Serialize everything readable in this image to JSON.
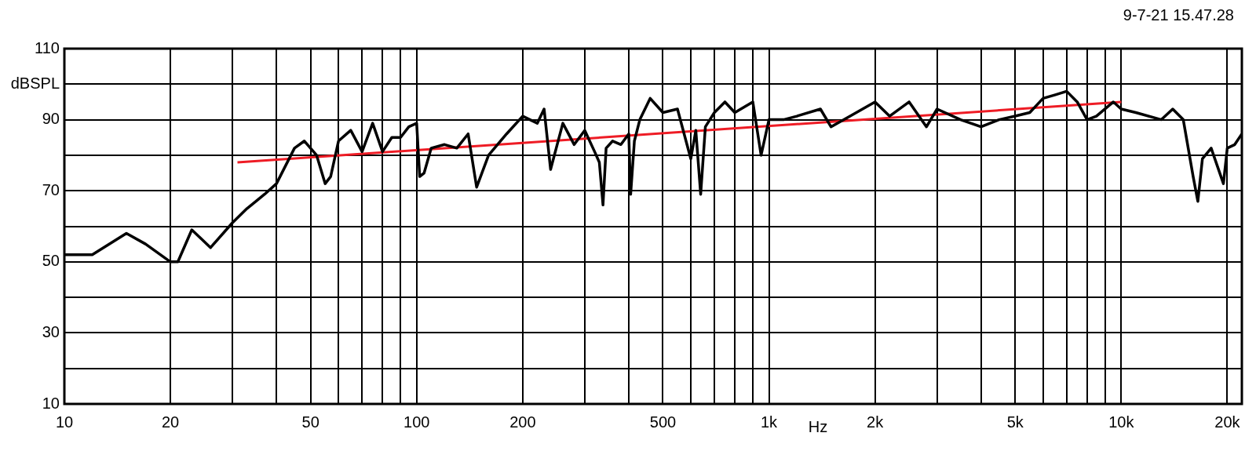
{
  "chart_data": {
    "type": "line",
    "ylabel": "dBSPL",
    "xlabel": "Hz",
    "annotations": [
      "9-7-21 15.47.28"
    ],
    "log": "x",
    "grid": true,
    "legend": false,
    "xlim": [
      10,
      22000
    ],
    "ylim": [
      10,
      110
    ],
    "xticks": [
      10,
      20,
      {
        "value": 30,
        "label": null
      },
      {
        "value": 40,
        "label": null
      },
      50,
      {
        "value": 60,
        "label": null
      },
      {
        "value": 70,
        "label": null
      },
      {
        "value": 80,
        "label": null
      },
      {
        "value": 90,
        "label": null
      },
      100,
      200,
      {
        "value": 300,
        "label": null
      },
      {
        "value": 400,
        "label": null
      },
      500,
      {
        "value": 600,
        "label": null
      },
      {
        "value": 700,
        "label": null
      },
      {
        "value": 800,
        "label": null
      },
      {
        "value": 900,
        "label": null
      },
      {
        "value": 1000,
        "label": "1k"
      },
      {
        "value": 2000,
        "label": "2k"
      },
      {
        "value": 3000,
        "label": null
      },
      {
        "value": 4000,
        "label": null
      },
      {
        "value": 5000,
        "label": "5k"
      },
      {
        "value": 6000,
        "label": null
      },
      {
        "value": 7000,
        "label": null
      },
      {
        "value": 8000,
        "label": null
      },
      {
        "value": 9000,
        "label": null
      },
      {
        "value": 10000,
        "label": "10k"
      },
      {
        "value": 20000,
        "label": "20k"
      }
    ],
    "yticks": [
      10,
      {
        "value": 20,
        "label": null
      },
      30,
      {
        "value": 40,
        "label": null
      },
      50,
      {
        "value": 60,
        "label": null
      },
      70,
      {
        "value": 80,
        "label": null
      },
      90,
      {
        "value": 100,
        "label": null
      },
      110
    ],
    "series": [
      {
        "color": "#000000",
        "x": [
          10,
          12,
          15,
          17,
          20,
          21,
          23,
          26,
          30,
          33,
          37,
          40,
          45,
          48,
          52,
          55,
          57,
          60,
          65,
          70,
          75,
          80,
          85,
          90,
          95,
          100,
          102,
          105,
          110,
          120,
          130,
          140,
          148,
          160,
          180,
          200,
          220,
          230,
          240,
          260,
          280,
          300,
          320,
          330,
          338,
          345,
          360,
          380,
          400,
          405,
          415,
          430,
          460,
          500,
          550,
          600,
          620,
          640,
          660,
          700,
          750,
          800,
          900,
          950,
          1000,
          1100,
          1200,
          1400,
          1500,
          1700,
          2000,
          2200,
          2500,
          2800,
          3000,
          3500,
          4000,
          4500,
          5000,
          5500,
          6000,
          6500,
          7000,
          7500,
          8000,
          8500,
          9500,
          10000,
          11000,
          13000,
          14000,
          15000,
          16000,
          16500,
          17000,
          18000,
          19500,
          20000,
          21000,
          22000
        ],
        "values": [
          52,
          52,
          58,
          55,
          50,
          50,
          59,
          54,
          61,
          65,
          69,
          72,
          82,
          84,
          80,
          72,
          74,
          84,
          87,
          81,
          89,
          81,
          85,
          85,
          88,
          89,
          74,
          75,
          82,
          83,
          82,
          86,
          71,
          80,
          86,
          91,
          89,
          93,
          76,
          89,
          83,
          87,
          81,
          78,
          66,
          82,
          84,
          83,
          86,
          69,
          84,
          90,
          96,
          92,
          93,
          79,
          87,
          69,
          88,
          92,
          95,
          92,
          95,
          80,
          90,
          90,
          91,
          93,
          88,
          91,
          95,
          91,
          95,
          88,
          93,
          90,
          88,
          90,
          91,
          92,
          96,
          97,
          98,
          95,
          90,
          91,
          95,
          93,
          92,
          90,
          93,
          90,
          74,
          67,
          79,
          82,
          72,
          82,
          83,
          86
        ]
      },
      {
        "type": "line",
        "color": "#ee1c25",
        "x": [
          31,
          10000
        ],
        "values": [
          78,
          95
        ]
      }
    ]
  }
}
